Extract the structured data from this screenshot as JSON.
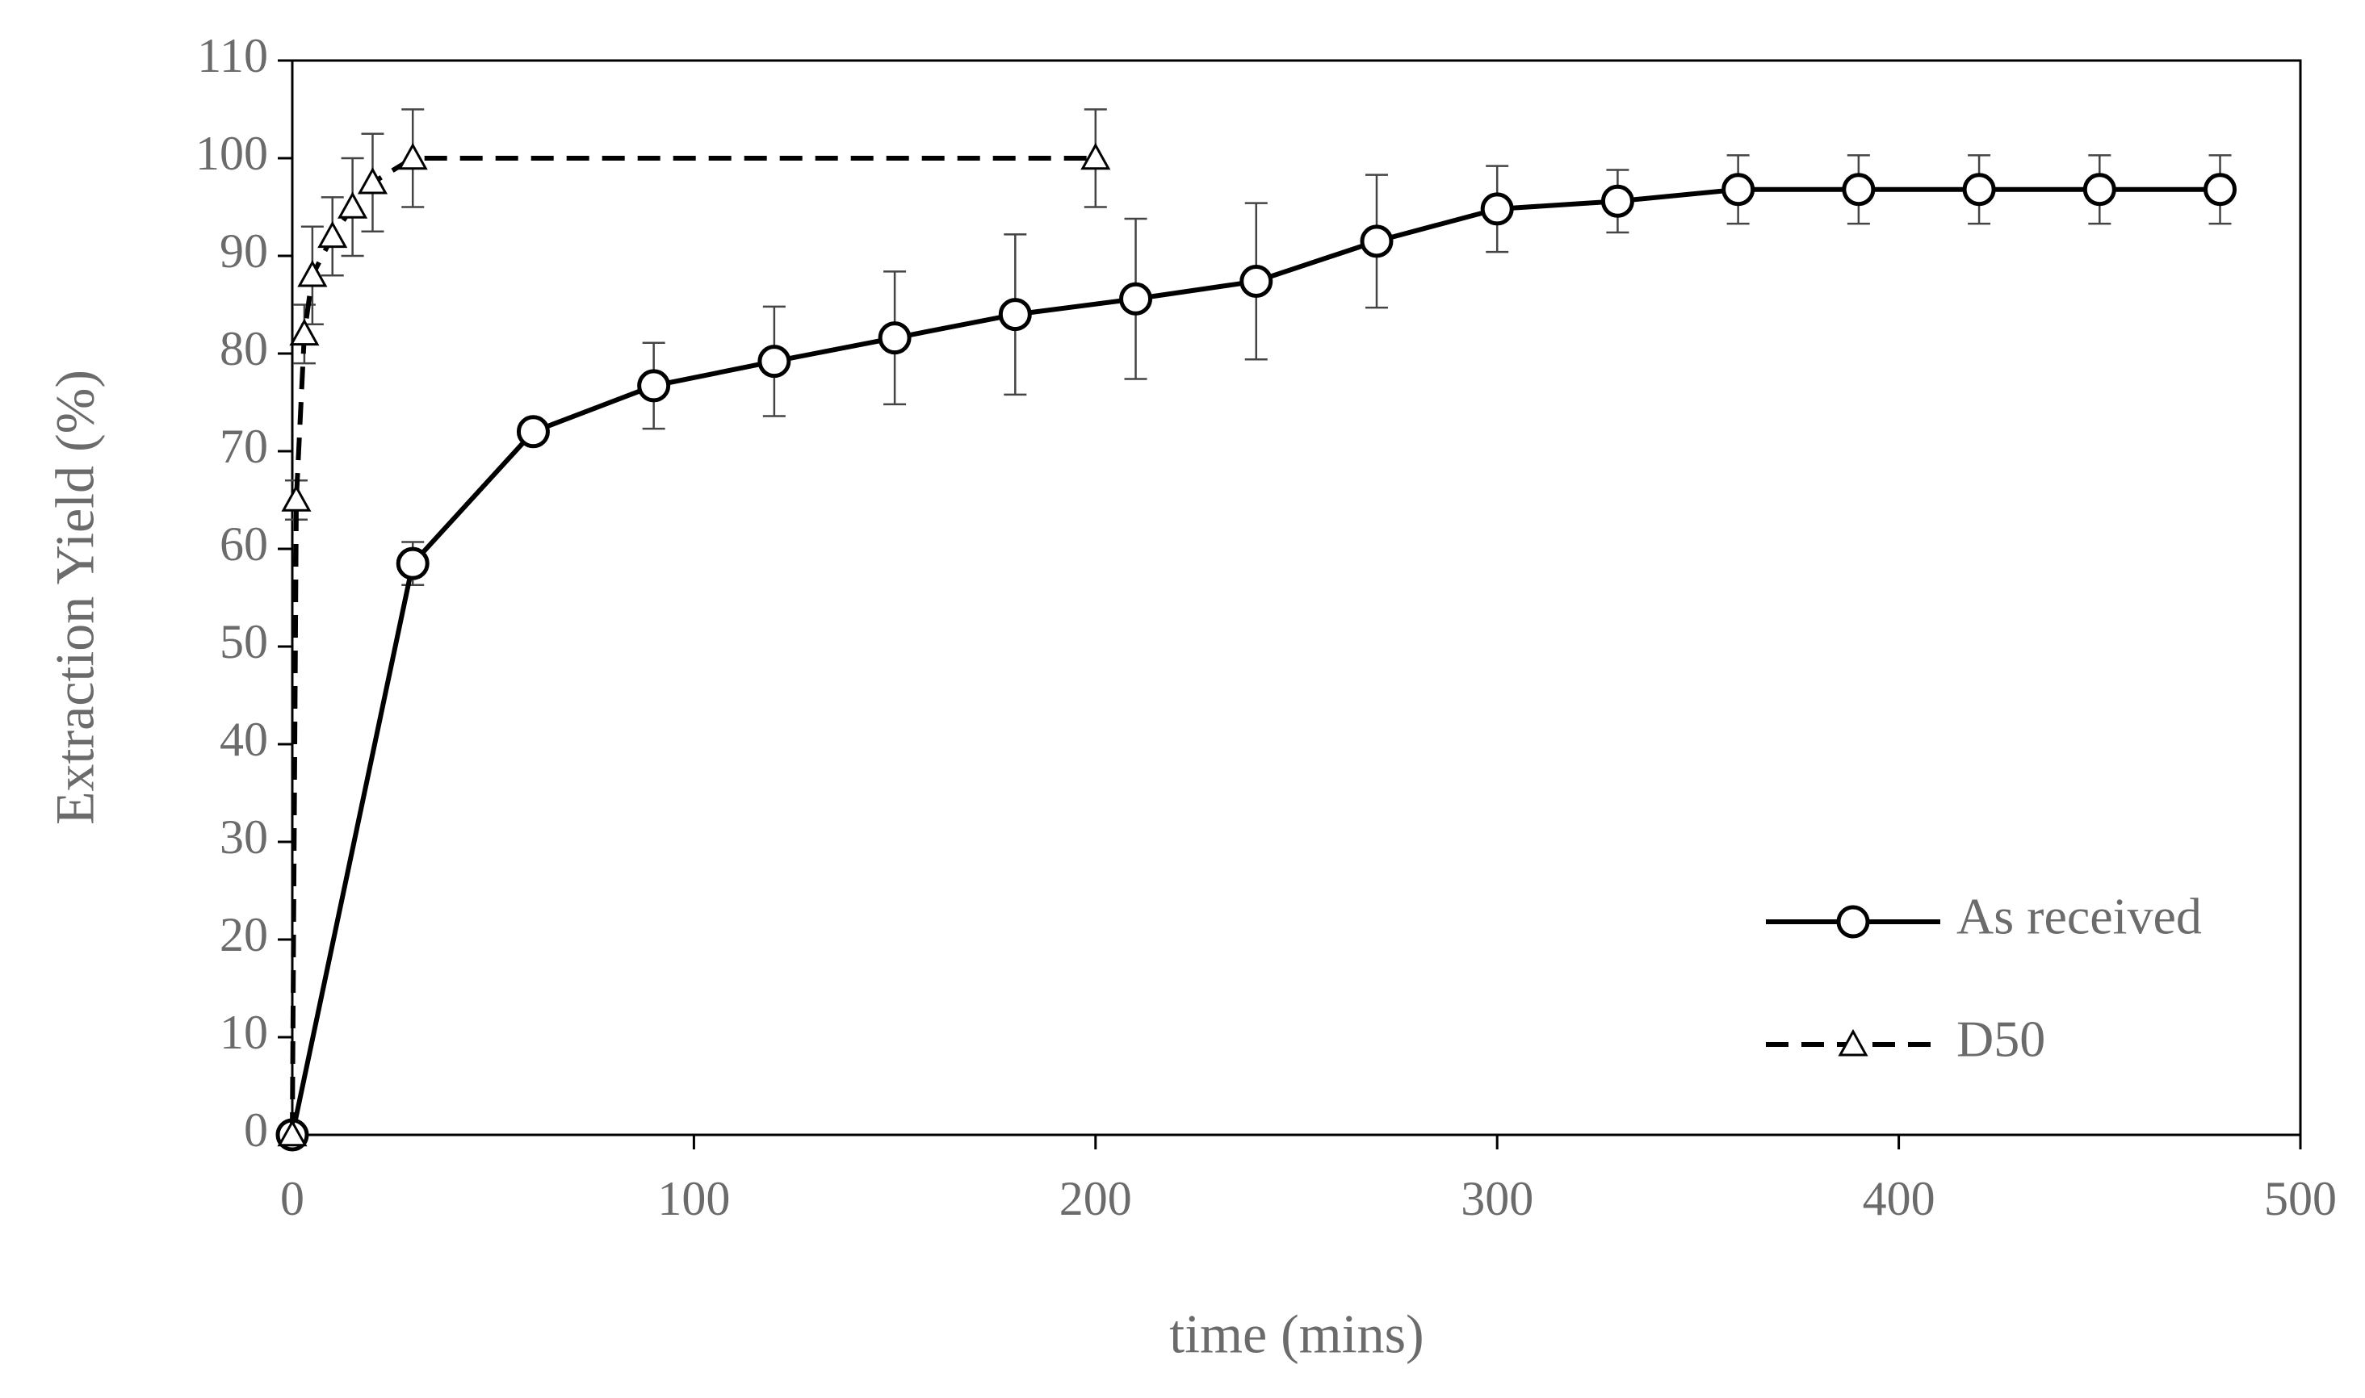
{
  "chart_data": {
    "type": "line",
    "x_label": "time (mins)",
    "y_label": "Extraction Yield (%)",
    "xlim": [
      0,
      500
    ],
    "xticks": [
      0,
      100,
      200,
      300,
      400,
      500
    ],
    "ylim": [
      0,
      110
    ],
    "yticks": [
      0,
      10,
      20,
      30,
      40,
      50,
      60,
      70,
      80,
      90,
      100,
      110
    ],
    "legend": "lower right",
    "series": [
      {
        "name": "As received",
        "color": "#000000",
        "dash": "solid",
        "marker": "circle",
        "x": [
          0,
          30,
          60,
          90,
          120,
          150,
          180,
          210,
          240,
          270,
          300,
          330,
          360,
          390,
          420,
          450,
          480
        ],
        "values": [
          0,
          58.5,
          72,
          76.7,
          79.2,
          81.6,
          84,
          85.6,
          87.4,
          91.5,
          94.8,
          95.6,
          96.8,
          96.8,
          96.8,
          96.8,
          96.8
        ],
        "errors": [
          0,
          2.2,
          0.5,
          4.4,
          5.6,
          6.8,
          8.2,
          8.2,
          8,
          6.8,
          4.4,
          3.2,
          3.5,
          3.5,
          3.5,
          3.5,
          3.5
        ]
      },
      {
        "name": "D50",
        "color": "#000000",
        "dash": "dashed",
        "marker": "triangle",
        "x": [
          0,
          1,
          3,
          5,
          10,
          15,
          20,
          30,
          200
        ],
        "values": [
          0,
          65,
          82,
          88,
          92,
          95,
          97.5,
          100,
          100
        ],
        "errors": [
          0,
          2,
          3,
          5,
          4,
          5,
          5,
          5,
          5
        ]
      }
    ]
  }
}
